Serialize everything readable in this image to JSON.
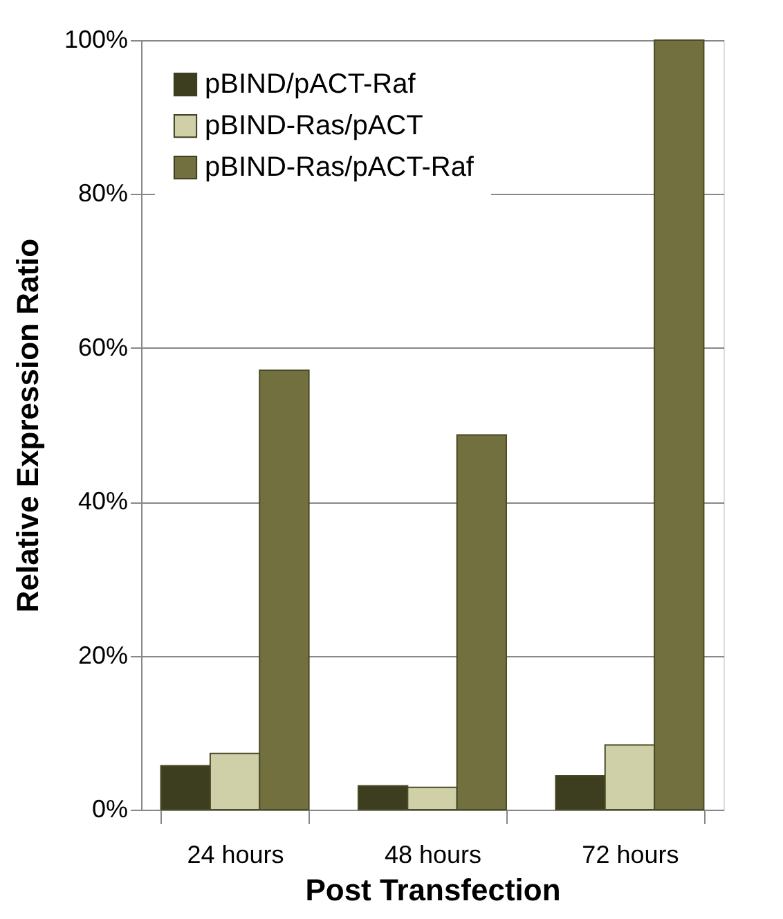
{
  "chart_data": {
    "type": "bar",
    "xlabel": "Post Transfection",
    "ylabel": "Relative Expression Ratio",
    "categories": [
      "24 hours",
      "48 hours",
      "72 hours"
    ],
    "series": [
      {
        "name": "pBIND/pACT-Raf",
        "color": "#3d3d20",
        "values": [
          5.7,
          3.1,
          4.4
        ]
      },
      {
        "name": "pBIND-Ras/pACT",
        "color": "#d0d0a8",
        "values": [
          7.3,
          2.9,
          8.4
        ]
      },
      {
        "name": "pBIND-Ras/pACT-Raf",
        "color": "#72703e",
        "values": [
          57.1,
          48.7,
          100
        ]
      }
    ],
    "ylim": [
      0,
      100
    ],
    "yticks": [
      {
        "value": 0,
        "label": "0%"
      },
      {
        "value": 20,
        "label": "20%"
      },
      {
        "value": 40,
        "label": "40%"
      },
      {
        "value": 60,
        "label": "60%"
      },
      {
        "value": 80,
        "label": "80%"
      },
      {
        "value": 100,
        "label": "100%"
      }
    ],
    "grid": "y",
    "legend": "top left"
  }
}
